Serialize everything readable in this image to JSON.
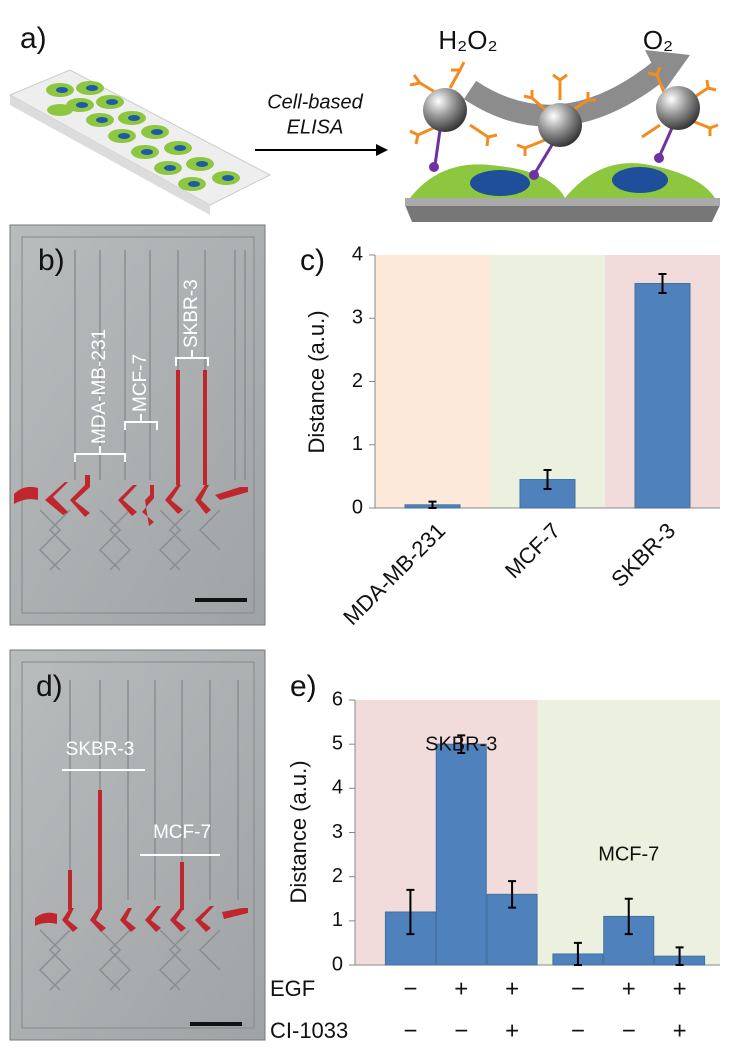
{
  "figure": {
    "panel_a": {
      "label": "a)",
      "arrow_text": [
        "Cell-based",
        "ELISA"
      ],
      "reactant": "H₂O₂",
      "product": "O₂"
    },
    "panel_b": {
      "label": "b)",
      "channel_labels": [
        "MDA-MB-231",
        "MCF-7",
        "SKBR-3"
      ]
    },
    "panel_d": {
      "label": "d)",
      "channel_labels": [
        "SKBR-3",
        "MCF-7"
      ]
    }
  },
  "chart_data": [
    {
      "type": "bar",
      "panel_label": "c)",
      "y_label": "Distance (a.u.)",
      "categories": [
        "MDA-MB-231",
        "MCF-7",
        "SKBR-3"
      ],
      "values": [
        0.05,
        0.45,
        3.55
      ],
      "errors": [
        0.05,
        0.15,
        0.15
      ],
      "color": "#4f81bd",
      "background_colors": [
        "#fde9d9",
        "#ebf1de",
        "#f2dcdb"
      ],
      "ylim": [
        0,
        4
      ],
      "yticks": [
        0,
        1,
        2,
        3,
        4
      ]
    },
    {
      "type": "bar",
      "panel_label": "e)",
      "y_label": "Distance (a.u.)",
      "categories": [
        null,
        null,
        null,
        null,
        null,
        null
      ],
      "values": [
        1.2,
        5.0,
        1.6,
        0.25,
        1.1,
        0.2
      ],
      "errors": [
        0.5,
        0.2,
        0.3,
        0.25,
        0.4,
        0.2
      ],
      "color": "#4f81bd",
      "groups": [
        {
          "label": "SKBR-3",
          "background": "#f2dcdb",
          "members": [
            0,
            1,
            2
          ]
        },
        {
          "label": "MCF-7",
          "background": "#ebf1de",
          "members": [
            3,
            4,
            5
          ]
        }
      ],
      "treatments": [
        {
          "name": "EGF",
          "signs": [
            "−",
            "+",
            "+",
            "−",
            "+",
            "+"
          ]
        },
        {
          "name": "CI-1033",
          "signs": [
            "−",
            "−",
            "+",
            "−",
            "−",
            "+"
          ]
        }
      ],
      "ylim": [
        0,
        6
      ],
      "yticks": [
        0,
        1,
        2,
        3,
        4,
        5,
        6
      ]
    }
  ]
}
